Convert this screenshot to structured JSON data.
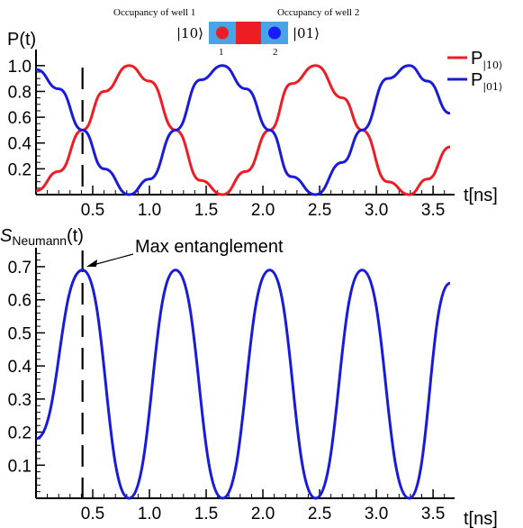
{
  "chart_data": [
    {
      "type": "line",
      "ylabel": "P(t)",
      "xlabel": "t[ns]",
      "xlim": [
        0,
        3.65
      ],
      "ylim": [
        0,
        1.05
      ],
      "xticks": [
        "0.5",
        "1.0",
        "1.5",
        "2.0",
        "2.5",
        "3.0",
        "3.5"
      ],
      "yticks": [
        "0.2",
        "0.4",
        "0.6",
        "0.8",
        "1.0"
      ],
      "legend_placement": "top-right",
      "legend": {
        "red_main": "P",
        "red_sub": "|10⟩",
        "blue_main": "P",
        "blue_sub": "|01⟩"
      },
      "marker_x": 0.41,
      "series": [
        {
          "label": "P|10⟩",
          "color": "#ee1c24",
          "x": [
            0,
            0.2,
            0.41,
            0.6,
            0.82,
            1.0,
            1.23,
            1.45,
            1.645,
            1.85,
            2.06,
            2.25,
            2.465,
            2.7,
            2.875,
            3.1,
            3.29,
            3.45,
            3.65
          ],
          "y": [
            0.03,
            0.18,
            0.5,
            0.8,
            1.0,
            0.88,
            0.5,
            0.11,
            0.0,
            0.18,
            0.5,
            0.86,
            1.0,
            0.75,
            0.5,
            0.1,
            0.0,
            0.12,
            0.37
          ]
        },
        {
          "label": "P|01⟩",
          "color": "#1a1adb",
          "x": [
            0,
            0.2,
            0.41,
            0.6,
            0.82,
            1.0,
            1.23,
            1.45,
            1.645,
            1.85,
            2.06,
            2.25,
            2.465,
            2.7,
            2.875,
            3.1,
            3.29,
            3.45,
            3.65
          ],
          "y": [
            0.97,
            0.82,
            0.5,
            0.2,
            0.0,
            0.12,
            0.5,
            0.89,
            1.0,
            0.82,
            0.5,
            0.14,
            0.0,
            0.25,
            0.5,
            0.9,
            1.0,
            0.88,
            0.63
          ]
        }
      ]
    },
    {
      "type": "line",
      "ylabel_main": "S",
      "ylabel_sub": "Neumann",
      "ylabel_tail": "(t)",
      "xlabel": "t[ns]",
      "xlim": [
        0,
        3.65
      ],
      "ylim": [
        0,
        0.75
      ],
      "xticks": [
        "0.5",
        "1.0",
        "1.5",
        "2.0",
        "2.5",
        "3.0",
        "3.5"
      ],
      "yticks": [
        "0.1",
        "0.2",
        "0.3",
        "0.4",
        "0.5",
        "0.6",
        "0.7"
      ],
      "annotation": "Max entanglement",
      "marker_x": 0.41,
      "series": [
        {
          "label": "S_Neumann",
          "color": "#1a1adb",
          "x": [
            0,
            0.41,
            0.82,
            1.23,
            1.645,
            2.06,
            2.465,
            2.875,
            3.29,
            3.65
          ],
          "y": [
            0.18,
            0.69,
            0.0,
            0.69,
            0.0,
            0.69,
            0.0,
            0.69,
            0.0,
            0.65
          ]
        }
      ]
    }
  ],
  "inset": {
    "left_caption": "Occupancy of well 1",
    "right_caption": "Occupancy of well 2",
    "left_ket": "|10⟩",
    "right_ket": "|01⟩",
    "left_index": "1",
    "right_index": "2",
    "well_color": "#4aa3e6",
    "barrier_color": "#ee1c24",
    "red_dot_color": "#ee1c24",
    "blue_dot_color": "#1a1aff"
  }
}
